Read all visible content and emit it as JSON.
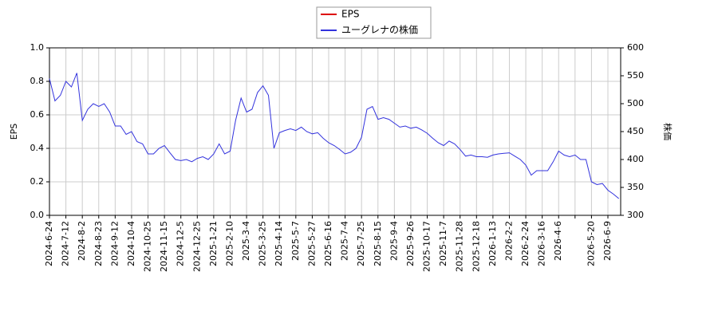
{
  "chart_data": {
    "type": "line",
    "y_label": "EPS",
    "y2_label": "株価",
    "ylim": [
      0,
      1.0
    ],
    "yticks": [
      {
        "value": 0,
        "label": "0.0"
      },
      0.2,
      0.4,
      0.6,
      0.8,
      {
        "value": 1,
        "label": "1.0"
      }
    ],
    "y2lim": [
      300,
      600
    ],
    "y2ticks": [
      300,
      350,
      400,
      450,
      500,
      550,
      600
    ],
    "grid": true,
    "legend": "top",
    "categories": [
      "2024-6-24",
      null,
      null,
      "2024-7-12",
      null,
      null,
      "2024-8-2",
      null,
      null,
      "2024-8-23",
      null,
      null,
      "2024-9-12",
      null,
      null,
      "2024-10-4",
      null,
      null,
      "2024-10-25",
      null,
      null,
      "2024-11-15",
      null,
      null,
      "2024-12-5",
      null,
      null,
      "2024-12-25",
      null,
      null,
      "2025-1-21",
      null,
      null,
      "2025-2-10",
      null,
      null,
      "2025-3-4",
      null,
      null,
      "2025-3-25",
      null,
      null,
      "2025-4-14",
      null,
      null,
      "2025-5-7",
      null,
      null,
      "2025-5-27",
      null,
      null,
      "2025-6-16",
      null,
      null,
      "2025-7-4",
      null,
      null,
      "2025-7-25",
      null,
      null,
      "2025-8-15",
      null,
      null,
      "2025-9-4",
      null,
      null,
      "2025-9-26",
      null,
      null,
      "2025-10-17",
      null,
      null,
      "2025-11-7",
      null,
      null,
      "2025-11-28",
      null,
      null,
      "2025-12-18",
      null,
      null,
      "2026-1-13",
      null,
      null,
      "2026-2-2",
      null,
      null,
      "2026-2-24",
      null,
      null,
      "2026-3-16",
      null,
      null,
      "2026-4-6",
      null,
      null,
      null,
      null,
      null,
      "2026-5-20",
      null,
      null,
      "2026-6-9",
      null,
      null
    ],
    "series": [
      {
        "name": "EPS",
        "color": "#dd0000",
        "values": [
          null,
          null,
          null,
          null,
          null,
          null,
          null,
          null,
          null,
          null,
          null,
          null,
          null,
          null,
          null,
          null,
          null,
          null,
          null,
          null,
          null,
          null,
          null,
          null,
          null,
          null,
          null,
          null,
          null,
          null,
          null,
          null,
          null,
          null,
          null,
          null,
          null,
          null,
          null,
          null,
          null,
          null,
          null,
          null,
          null,
          null,
          null,
          null,
          null,
          null,
          null,
          null,
          null,
          null,
          null,
          null,
          null,
          null,
          null,
          null,
          null,
          null,
          null,
          null,
          null,
          null,
          null,
          null,
          null,
          null,
          null,
          null,
          null,
          null,
          null,
          null,
          null,
          null,
          null,
          null,
          null,
          null,
          null,
          null,
          null,
          null,
          null,
          null,
          null,
          null,
          null,
          null,
          null,
          null,
          null,
          null,
          null,
          null,
          null,
          null,
          null,
          null,
          null,
          null,
          null
        ]
      },
      {
        "name": "ユーグレナの株価",
        "color": "#3333dd",
        "axis": "y2",
        "values": [
          545,
          505,
          515,
          540,
          530,
          555,
          470,
          490,
          500,
          495,
          500,
          485,
          460,
          460,
          445,
          450,
          432,
          428,
          410,
          410,
          420,
          425,
          412,
          400,
          398,
          400,
          396,
          402,
          405,
          400,
          410,
          428,
          410,
          415,
          470,
          510,
          485,
          490,
          520,
          532,
          515,
          420,
          448,
          452,
          455,
          452,
          458,
          450,
          446,
          448,
          438,
          430,
          425,
          418,
          410,
          413,
          420,
          440,
          490,
          495,
          472,
          475,
          472,
          465,
          458,
          460,
          456,
          458,
          453,
          447,
          438,
          430,
          425,
          433,
          428,
          418,
          406,
          408,
          405,
          405,
          404,
          408,
          410,
          411,
          412,
          406,
          400,
          390,
          372,
          380,
          380,
          380,
          396,
          415,
          408,
          405,
          408,
          400,
          400,
          360,
          355,
          357,
          345,
          338,
          330
        ]
      }
    ]
  }
}
